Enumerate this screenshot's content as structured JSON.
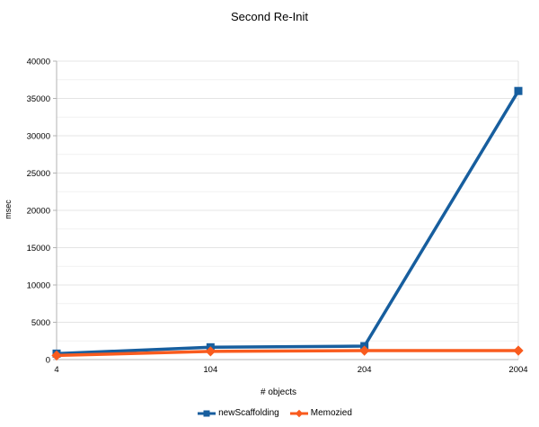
{
  "chart_data": {
    "type": "line",
    "title": "Second Re-Init",
    "xlabel": "# objects",
    "ylabel": "msec",
    "categories": [
      "4",
      "104",
      "204",
      "2004"
    ],
    "series": [
      {
        "name": "newScaffolding",
        "color": "#175E9E",
        "marker": "square",
        "values": [
          800,
          1650,
          1800,
          36000
        ]
      },
      {
        "name": "Memozied",
        "color": "#F95B1E",
        "marker": "diamond",
        "values": [
          550,
          1100,
          1200,
          1200
        ]
      }
    ],
    "ylim": [
      0,
      40000
    ],
    "y_major_step": 5000,
    "y_minor_step": 2500,
    "y_tick_labels": [
      "0",
      "5000",
      "10000",
      "15000",
      "20000",
      "25000",
      "30000",
      "35000",
      "40000"
    ],
    "grid": true,
    "legend_position": "bottom",
    "background_color": "#ffffff",
    "axis_line_color": "#b3b3b3",
    "major_grid_color": "#e4e4e4",
    "minor_grid_color": "#f1f1f1",
    "plot_border_color": "#e0e0e0"
  }
}
